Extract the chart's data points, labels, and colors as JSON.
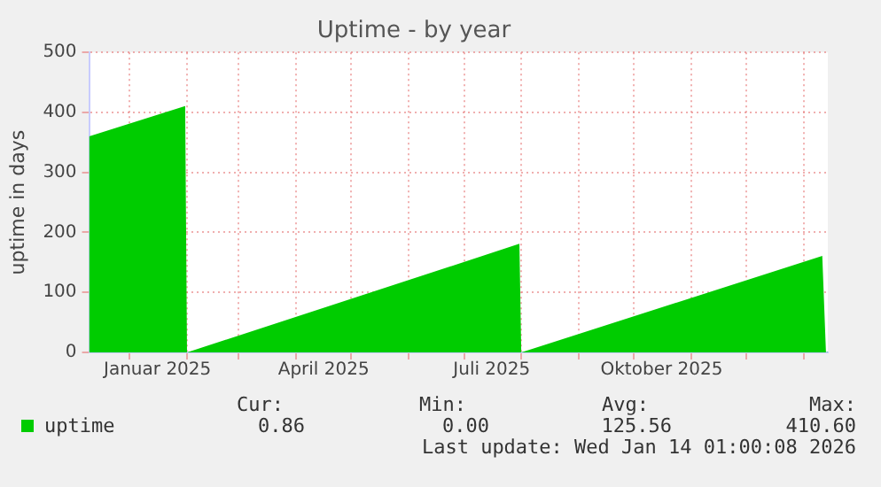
{
  "chart_data": {
    "type": "area",
    "title": "Uptime - by year",
    "ylabel": "uptime in days",
    "x": [
      "2024-12-10",
      "2025-01-31",
      "2025-02-01",
      "2025-07-31",
      "2025-08-01",
      "2026-01-11",
      "2026-01-13",
      "2026-01-14"
    ],
    "series": [
      {
        "name": "uptime",
        "color": "#00cc00",
        "values": [
          360,
          410.6,
          0,
          181,
          0,
          161,
          0,
          0.86
        ]
      }
    ],
    "xlim": [
      "2024-12-10",
      "2026-01-14"
    ],
    "xticks": [
      {
        "value": "2025-01-01",
        "label": null
      },
      {
        "value": "2025-01-16",
        "label": "Januar 2025"
      },
      {
        "value": "2025-02-01",
        "label": null
      },
      {
        "value": "2025-03-01",
        "label": null
      },
      {
        "value": "2025-04-01",
        "label": null
      },
      {
        "value": "2025-04-16",
        "label": "April 2025"
      },
      {
        "value": "2025-05-01",
        "label": null
      },
      {
        "value": "2025-06-01",
        "label": null
      },
      {
        "value": "2025-07-01",
        "label": null
      },
      {
        "value": "2025-07-16",
        "label": "Juli 2025"
      },
      {
        "value": "2025-08-01",
        "label": null
      },
      {
        "value": "2025-09-01",
        "label": null
      },
      {
        "value": "2025-10-01",
        "label": null
      },
      {
        "value": "2025-10-16",
        "label": "Oktober 2025"
      },
      {
        "value": "2025-11-01",
        "label": null
      },
      {
        "value": "2025-12-01",
        "label": null
      },
      {
        "value": "2026-01-01",
        "label": null
      }
    ],
    "ylim": [
      0,
      500
    ],
    "yticks": [
      0,
      100,
      200,
      300,
      400,
      500
    ],
    "grid": true,
    "legend": "bottom",
    "annotations": [
      "Cur:",
      "Min:",
      "Avg:",
      "Max:",
      "0.86",
      "0.00",
      "125.56",
      "410.60",
      "Last update: Wed Jan 14 01:00:08 2026"
    ]
  }
}
